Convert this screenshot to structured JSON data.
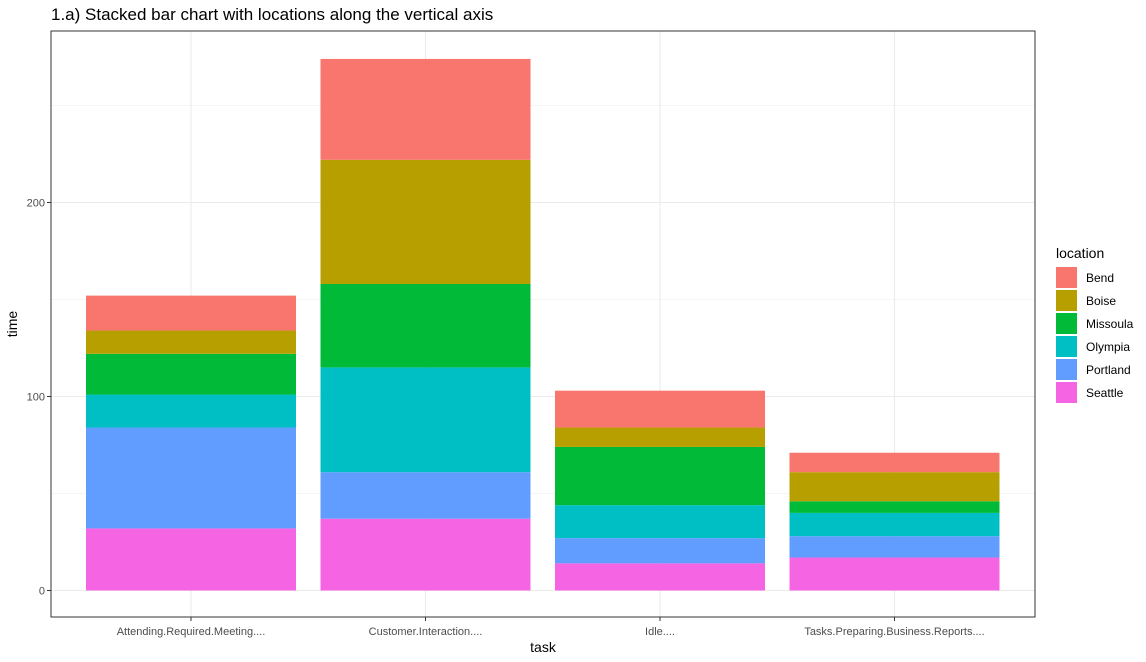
{
  "chart_data": {
    "type": "bar",
    "stacked": true,
    "title": "1.a) Stacked bar chart with locations along the vertical axis",
    "xlabel": "task",
    "ylabel": "time",
    "ylim": [
      0,
      274
    ],
    "yticks": [
      0,
      100,
      200
    ],
    "categories": [
      "Attending.Required.Meeting....",
      "Customer.Interaction....",
      "Idle....",
      "Tasks.Preparing.Business.Reports...."
    ],
    "legend_title": "location",
    "legend_position": "right",
    "grid": true,
    "stack_order_bottom_to_top": [
      "Seattle",
      "Portland",
      "Olympia",
      "Missoula",
      "Boise",
      "Bend"
    ],
    "series": [
      {
        "name": "Bend",
        "color": "#F8766D",
        "values": [
          18,
          52,
          19,
          10
        ]
      },
      {
        "name": "Boise",
        "color": "#B79F00",
        "values": [
          12,
          64,
          10,
          15
        ]
      },
      {
        "name": "Missoula",
        "color": "#00BA38",
        "values": [
          21,
          43,
          30,
          6
        ]
      },
      {
        "name": "Olympia",
        "color": "#00BFC4",
        "values": [
          17,
          54,
          17,
          12
        ]
      },
      {
        "name": "Portland",
        "color": "#619CFF",
        "values": [
          52,
          24,
          13,
          11
        ]
      },
      {
        "name": "Seattle",
        "color": "#F564E3",
        "values": [
          32,
          37,
          14,
          17
        ]
      }
    ]
  }
}
